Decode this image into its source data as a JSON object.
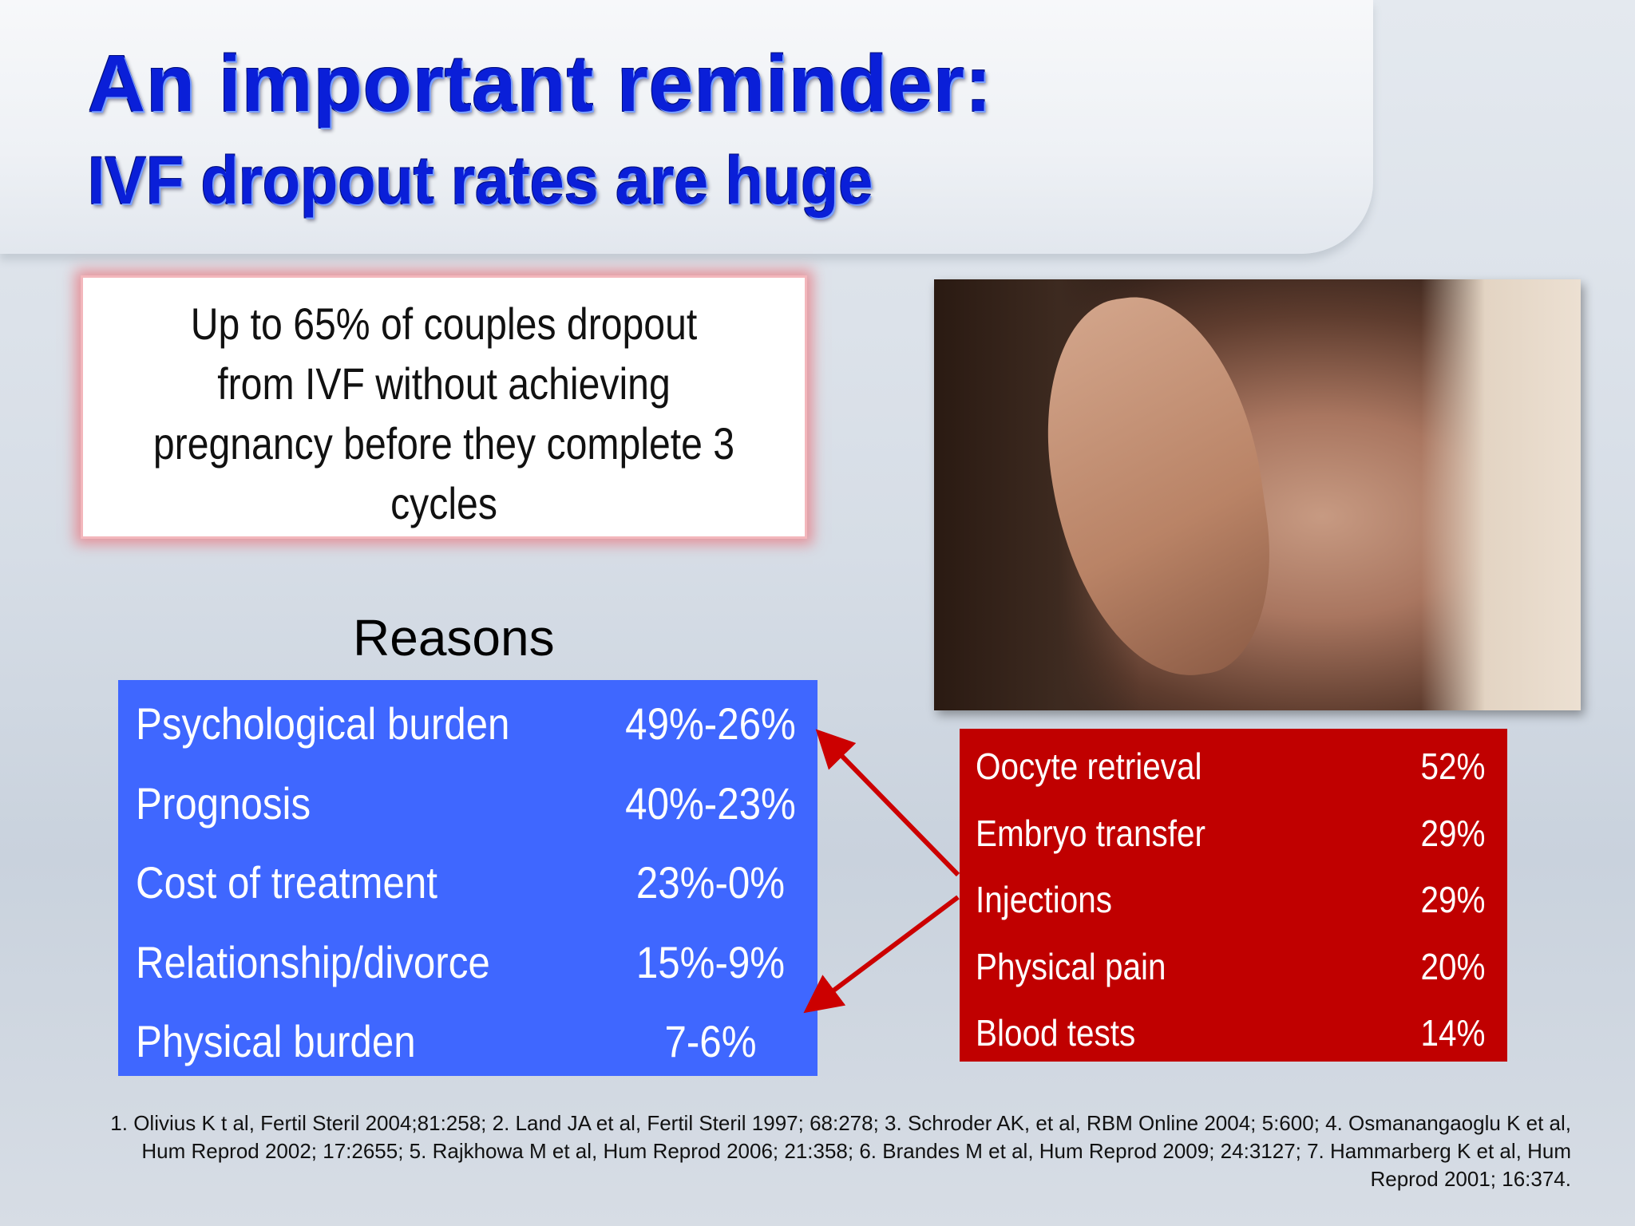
{
  "title": {
    "line1": "An important reminder:",
    "line2": "IVF dropout rates are huge"
  },
  "callout": {
    "text": "Up to 65% of couples dropout from IVF without achieving pregnancy before they complete 3 cycles"
  },
  "photo": {
    "description_icon": "crying-woman-photo"
  },
  "reasons": {
    "heading": "Reasons",
    "rows": [
      {
        "label": "Psychological burden",
        "value": "49%-26%"
      },
      {
        "label": "Prognosis",
        "value": "40%-23%"
      },
      {
        "label": "Cost of treatment",
        "value": "23%-0%"
      },
      {
        "label": "Relationship/divorce",
        "value": "15%-9%"
      },
      {
        "label": "Physical burden",
        "value": "7-6%"
      }
    ]
  },
  "physical_breakdown": {
    "rows": [
      {
        "label": "Oocyte retrieval",
        "value": "52%"
      },
      {
        "label": "Embryo transfer",
        "value": "29%"
      },
      {
        "label": "Injections",
        "value": "29%"
      },
      {
        "label": "Physical pain",
        "value": "20%"
      },
      {
        "label": "Blood tests",
        "value": "14%"
      }
    ]
  },
  "colors": {
    "title": "#0a1fd8",
    "reasons_box": "#3f67ff",
    "physical_box": "#c00000",
    "arrow": "#cc0000"
  },
  "references": "1. Olivius K  t al, Fertil Steril 2004;81:258; 2. Land JA et al, Fertil Steril 1997; 68:278; 3. Schroder AK, et al, RBM Online 2004; 5:600; 4. Osmanangaoglu K et al, Hum Reprod 2002; 17:2655; 5. Rajkhowa M et al, Hum Reprod 2006; 21:358; 6. Brandes M et al, Hum Reprod 2009; 24:3127; 7. Hammarberg K et al, Hum Reprod 2001; 16:374."
}
